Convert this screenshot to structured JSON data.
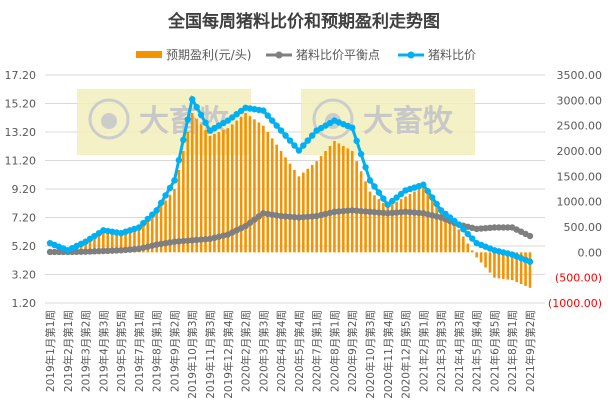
{
  "chart_data": {
    "type": "bar+line",
    "title": "全国每周猪料比价和预期盈利走势图",
    "legend_position": "top",
    "grid": true,
    "watermark": "大畜牧 www.dxumu.com",
    "categories": [
      "2019年1月第1周",
      "2019年2月第1周",
      "2019年3月第2周",
      "2019年4月第3周",
      "2019年5月第5周",
      "2019年7月第1周",
      "2019年8月第1周",
      "2019年9月第2周",
      "2019年10月第3周",
      "2019年11月第3周",
      "2019年12月第4周",
      "2020年2月第2周",
      "2020年3月第3周",
      "2020年4月第4周",
      "2020年5月第4周",
      "2020年7月第1周",
      "2020年8月第1周",
      "2020年9月第2周",
      "2020年10月第3周",
      "2020年11月第4周",
      "2020年12月第5周",
      "2021年2月第1周",
      "2021年3月第3周",
      "2021年4月第3周",
      "2021年5月第4周",
      "2021年6月第5周",
      "2021年8月第1周",
      "2021年9月第2周"
    ],
    "left_axis": {
      "min": 1.2,
      "max": 17.2,
      "step": 2,
      "ticks": [
        "1.20",
        "3.20",
        "5.20",
        "7.20",
        "9.20",
        "11.20",
        "13.20",
        "15.20",
        "17.20"
      ]
    },
    "right_axis": {
      "min": -1000,
      "max": 3500,
      "step": 500,
      "ticks": [
        "(1000.00)",
        "(500.00)",
        "0.00",
        "500.00",
        "1000.00",
        "1500.00",
        "2000.00",
        "2500.00",
        "3000.00",
        "3500.00"
      ],
      "negative_color": "#ff0000"
    },
    "series": [
      {
        "name": "预期盈利(元/头)",
        "type": "bar",
        "axis": "right",
        "color": "#f59200",
        "values": [
          0,
          100,
          200,
          420,
          350,
          450,
          800,
          1250,
          2750,
          2300,
          2450,
          2750,
          2500,
          2000,
          1500,
          1800,
          2200,
          2000,
          1200,
          900,
          1100,
          1300,
          800,
          450,
          -100,
          -500,
          -550,
          -700
        ]
      },
      {
        "name": "猪料比价平衡点",
        "type": "line",
        "axis": "left",
        "color": "#7f7f7f",
        "values": [
          4.78,
          4.78,
          4.8,
          4.85,
          4.9,
          5.0,
          5.3,
          5.5,
          5.6,
          5.7,
          6.0,
          6.6,
          7.5,
          7.3,
          7.2,
          7.3,
          7.6,
          7.7,
          7.6,
          7.5,
          7.6,
          7.5,
          7.2,
          6.7,
          6.4,
          6.5,
          6.5,
          5.9
        ]
      },
      {
        "name": "猪料比价",
        "type": "line",
        "axis": "left",
        "color": "#00b0f0",
        "values": [
          5.4,
          4.9,
          5.5,
          6.3,
          6.1,
          6.5,
          7.7,
          9.8,
          15.5,
          13.3,
          14.0,
          14.9,
          14.7,
          13.3,
          11.9,
          13.3,
          14.0,
          13.5,
          9.8,
          8.1,
          9.1,
          9.5,
          7.7,
          6.7,
          5.4,
          4.9,
          4.6,
          4.1
        ]
      }
    ]
  }
}
